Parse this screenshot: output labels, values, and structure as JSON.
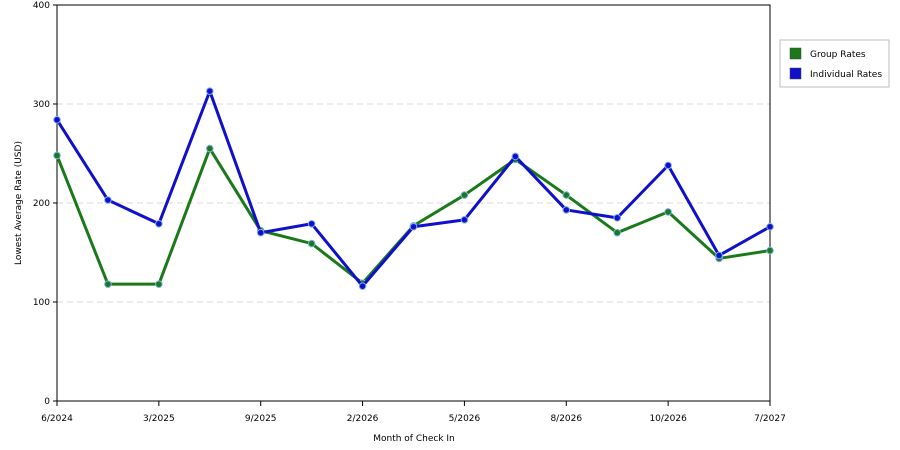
{
  "chart_data": {
    "type": "line",
    "xlabel": "Month of Check In",
    "ylabel": "Lowest Average Rate (USD)",
    "ylim": [
      0,
      400
    ],
    "yticks": [
      0,
      100,
      200,
      300,
      400
    ],
    "xtick_labels": [
      "6/2024",
      "3/2025",
      "9/2025",
      "2/2026",
      "5/2026",
      "8/2026",
      "10/2026",
      "7/2027"
    ],
    "xtick_positions": [
      0,
      2,
      4,
      6,
      8,
      10,
      12,
      14
    ],
    "grid": "horizontal dashed",
    "legend_position": "right",
    "series": [
      {
        "name": "Group Rates",
        "color": "#1a7a1a",
        "values": [
          248,
          118,
          118,
          255,
          172,
          159,
          119,
          177,
          208,
          244,
          208,
          170,
          191,
          144,
          152
        ]
      },
      {
        "name": "Individual Rates",
        "color": "#1010cc",
        "values": [
          284,
          203,
          179,
          313,
          170,
          179,
          116,
          176,
          183,
          247,
          193,
          185,
          238,
          147,
          176
        ]
      }
    ]
  }
}
